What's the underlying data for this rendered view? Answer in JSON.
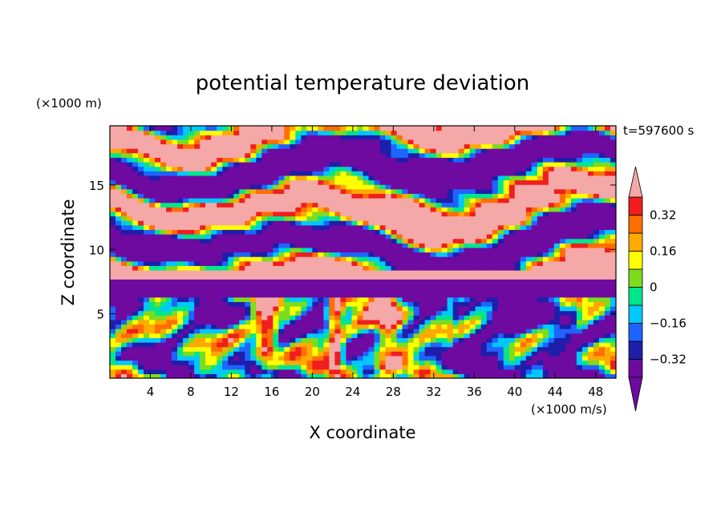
{
  "chart_data": {
    "type": "heatmap",
    "title": "potential temperature deviation",
    "xlabel": "X coordinate",
    "ylabel": "Z coordinate",
    "x_unit": "(×1000 m/s)",
    "y_unit": "(×1000 m)",
    "time_label": "t=597600 s",
    "xlim": [
      0,
      50
    ],
    "ylim": [
      0,
      19.6
    ],
    "x_ticks": [
      4,
      8,
      12,
      16,
      20,
      24,
      28,
      32,
      36,
      40,
      44,
      48
    ],
    "y_ticks": [
      5,
      10,
      15
    ],
    "colorbar": {
      "levels": [
        -0.4,
        -0.32,
        -0.24,
        -0.16,
        -0.08,
        0,
        0.08,
        0.16,
        0.24,
        0.32,
        0.4
      ],
      "labels": [
        "0.32",
        "0.16",
        "0",
        "−0.16",
        "−0.32"
      ],
      "label_values": [
        0.32,
        0.16,
        0,
        -0.16,
        -0.32
      ],
      "colors": [
        "#6e0aa0",
        "#1e1eaa",
        "#1e64ff",
        "#00c8ff",
        "#00e68c",
        "#7ddc1e",
        "#ffff00",
        "#ffaa00",
        "#ff6e00",
        "#f01e1e"
      ],
      "over_color": "#f5a8a8",
      "under_color": "#6e0aa0",
      "extend": "both"
    },
    "grid": false
  }
}
